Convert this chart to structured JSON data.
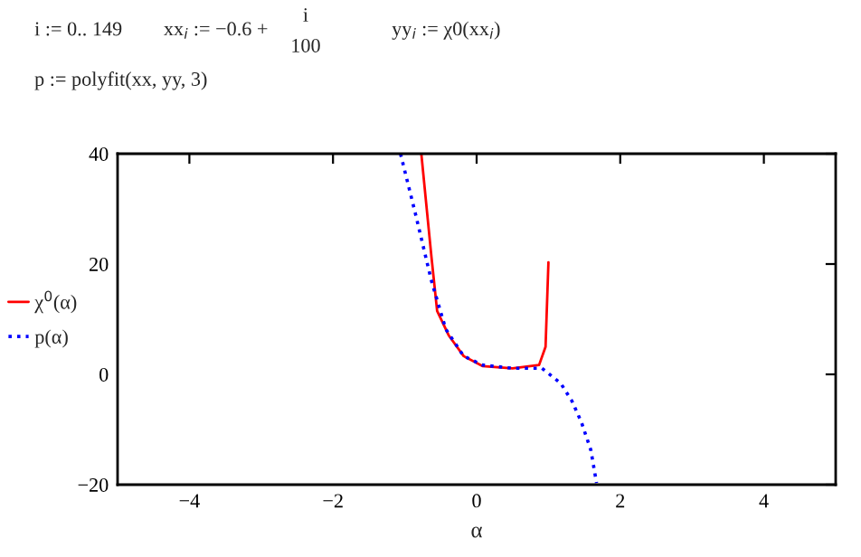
{
  "chart_data": {
    "type": "line",
    "xlabel": "α",
    "annotations": [
      "i := 0.. 149",
      "xx$_{i}$ := −0.6 +",
      "i",
      "100",
      "yy$_{i}$ := χ0(xx$_{i}$)",
      "p := polyfit(xx, yy, 3)"
    ],
    "series": [
      {
        "name": "χ$^{0}$(α)",
        "color": "#ff0000",
        "line_style": "solid",
        "x": [
          -0.77,
          -0.63,
          -0.55,
          -0.39,
          -0.18,
          0.08,
          0.5,
          0.87,
          0.96,
          1.0
        ],
        "values": [
          40,
          21.4,
          11.5,
          7.1,
          3.3,
          1.5,
          1.1,
          1.7,
          5.0,
          20.3
        ]
      },
      {
        "name": "p(α)",
        "color": "#0000ff",
        "line_style": "dotted",
        "x": [
          -1.06,
          -0.85,
          -0.63,
          -0.43,
          -0.18,
          0.08,
          0.5,
          0.91,
          1.17,
          1.33,
          1.46,
          1.59,
          1.67
        ],
        "values": [
          40,
          29,
          17,
          8.2,
          3.3,
          1.7,
          1.1,
          1.1,
          -1.6,
          -4.9,
          -8.7,
          -13.7,
          -19.7
        ]
      }
    ],
    "xlim": [
      -5,
      5
    ],
    "ylim": [
      -20,
      40
    ],
    "xticks": [
      {
        "value": -4,
        "label": "−4"
      },
      {
        "value": -2,
        "label": "−2"
      },
      0,
      2,
      4
    ],
    "yticks": [
      {
        "value": -20,
        "label": "−20"
      },
      0,
      20,
      40
    ],
    "grid": false,
    "legend": "left"
  }
}
